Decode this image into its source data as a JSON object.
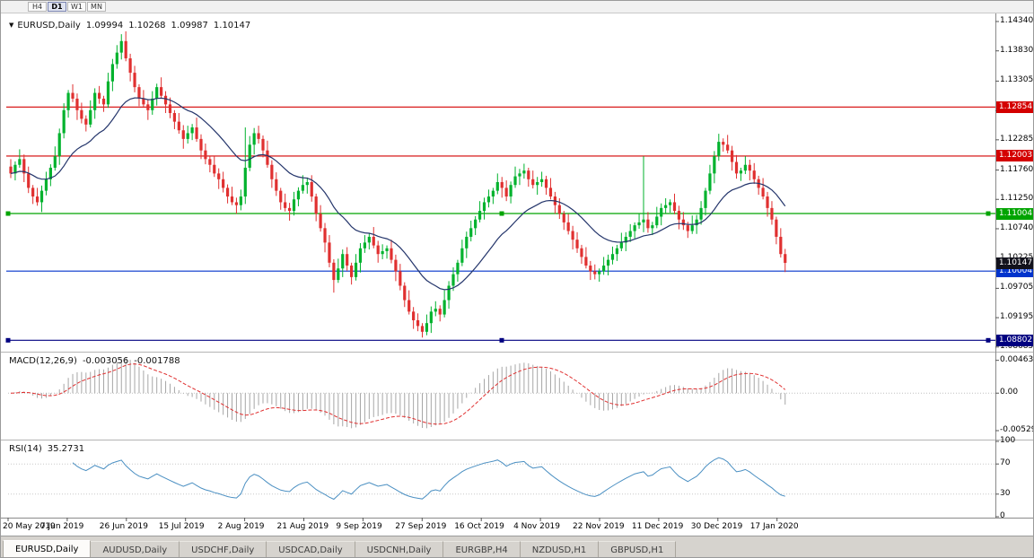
{
  "toolbar": {
    "buttons": [
      "H4",
      "D1",
      "W1",
      "MN"
    ],
    "active": "D1"
  },
  "tabs": [
    {
      "label": "EURUSD,Daily",
      "active": true
    },
    {
      "label": "AUDUSD,Daily",
      "active": false
    },
    {
      "label": "USDCHF,Daily",
      "active": false
    },
    {
      "label": "USDCAD,Daily",
      "active": false
    },
    {
      "label": "USDCNH,Daily",
      "active": false
    },
    {
      "label": "EURGBP,H4",
      "active": false
    },
    {
      "label": "NZDUSD,H1",
      "active": false
    },
    {
      "label": "GBPUSD,H1",
      "active": false
    }
  ],
  "chart_data": {
    "type": "candlestick",
    "title": "EURUSD,Daily",
    "symbol": "EURUSD",
    "timeframe": "Daily",
    "ohlc_display": {
      "open": "1.09994",
      "high": "1.10268",
      "low": "1.09987",
      "close": "1.10147"
    },
    "ylim": [
      1.0862,
      1.1448
    ],
    "y_ticks": [
      "1.14340",
      "1.13830",
      "1.13305",
      "1.12790",
      "1.12285",
      "1.11760",
      "1.11250",
      "1.10740",
      "1.10225",
      "1.09705",
      "1.09195",
      "1.08685"
    ],
    "x_labels": [
      "20 May 2019",
      "7 Jun 2019",
      "26 Jun 2019",
      "15 Jul 2019",
      "2 Aug 2019",
      "21 Aug 2019",
      "9 Sep 2019",
      "27 Sep 2019",
      "16 Oct 2019",
      "4 Nov 2019",
      "22 Nov 2019",
      "11 Dec 2019",
      "30 Dec 2019",
      "17 Jan 2020"
    ],
    "levels": [
      {
        "price": 1.12854,
        "label": "1.12854",
        "color": "#d40000",
        "handles": false
      },
      {
        "price": 1.12003,
        "label": "1.12003",
        "color": "#d40000",
        "handles": false
      },
      {
        "price": 1.11004,
        "label": "1.11004",
        "color": "#00a400",
        "handles": true
      },
      {
        "price": 1.10004,
        "label": "1.10004",
        "color": "#0033cc",
        "handles": false
      },
      {
        "price": 1.08802,
        "label": "1.08802",
        "color": "#000080",
        "handles": true
      }
    ],
    "current_price": {
      "value": 1.10147,
      "label": "1.10147",
      "bg": "#12121c"
    },
    "ma_period": 20,
    "macd_ylim": [
      -0.0063,
      0.0056
    ],
    "indicators": {
      "macd": {
        "name": "MACD(12,26,9)",
        "main_value": "-0.003056",
        "signal_value": "-0.001788",
        "params": [
          12,
          26,
          9
        ],
        "ticks": [
          "0.00463",
          "0.00",
          "-0.00529"
        ]
      },
      "rsi": {
        "name": "RSI(14)",
        "value": "35.2731",
        "period": 14,
        "ticks": [
          "100",
          "70",
          "30",
          "0"
        ],
        "levels": [
          30,
          70
        ]
      }
    },
    "colors": {
      "bull": "#00b22d",
      "bear": "#e03030",
      "ma": "#24356b",
      "macd_hist": "#a6a6a6",
      "macd_signal": "#e03030",
      "rsi": "#4a8fc2"
    },
    "closes": [
      1.117,
      1.1185,
      1.1195,
      1.117,
      1.1145,
      1.113,
      1.112,
      1.114,
      1.116,
      1.118,
      1.12,
      1.124,
      1.128,
      1.131,
      1.13,
      1.128,
      1.1265,
      1.1255,
      1.128,
      1.131,
      1.13,
      1.129,
      1.133,
      1.136,
      1.138,
      1.14,
      1.137,
      1.1345,
      1.132,
      1.13,
      1.129,
      1.128,
      1.13,
      1.132,
      1.1305,
      1.129,
      1.1275,
      1.126,
      1.1245,
      1.123,
      1.124,
      1.125,
      1.123,
      1.121,
      1.1195,
      1.1185,
      1.117,
      1.116,
      1.1145,
      1.113,
      1.112,
      1.1115,
      1.113,
      1.118,
      1.122,
      1.124,
      1.123,
      1.121,
      1.1185,
      1.116,
      1.114,
      1.112,
      1.111,
      1.1105,
      1.1125,
      1.114,
      1.115,
      1.1155,
      1.113,
      1.11,
      1.1075,
      1.105,
      1.1015,
      1.0985,
      1.1005,
      1.103,
      1.101,
      1.099,
      1.1015,
      1.104,
      1.105,
      1.106,
      1.1045,
      1.103,
      1.1035,
      1.104,
      1.102,
      1.1,
      1.0975,
      1.095,
      1.093,
      1.0915,
      1.0905,
      1.0895,
      1.091,
      1.093,
      1.0935,
      1.0925,
      1.095,
      1.0975,
      1.0995,
      1.1015,
      1.104,
      1.106,
      1.1075,
      1.109,
      1.1105,
      1.112,
      1.113,
      1.114,
      1.1155,
      1.1145,
      1.113,
      1.115,
      1.1165,
      1.117,
      1.1175,
      1.116,
      1.115,
      1.1155,
      1.116,
      1.1145,
      1.113,
      1.1115,
      1.11,
      1.1085,
      1.107,
      1.1055,
      1.104,
      1.1025,
      1.101,
      1.1,
      1.0995,
      1.1,
      1.101,
      1.102,
      1.103,
      1.104,
      1.105,
      1.106,
      1.107,
      1.108,
      1.1085,
      1.109,
      1.1075,
      1.108,
      1.1095,
      1.111,
      1.1115,
      1.112,
      1.1105,
      1.109,
      1.108,
      1.107,
      1.108,
      1.109,
      1.111,
      1.114,
      1.117,
      1.12,
      1.1225,
      1.122,
      1.121,
      1.119,
      1.117,
      1.1175,
      1.1185,
      1.1175,
      1.116,
      1.1145,
      1.113,
      1.111,
      1.109,
      1.106,
      1.103,
      1.10147
    ],
    "wick_overrides": {
      "25": {
        "high": 1.1412
      },
      "53": {
        "high": 1.125
      },
      "73": {
        "low": 1.0963
      },
      "93": {
        "low": 1.0885
      },
      "143": {
        "high": 1.12
      },
      "160": {
        "high": 1.1239
      },
      "175": {
        "low": 1.09987
      }
    }
  }
}
